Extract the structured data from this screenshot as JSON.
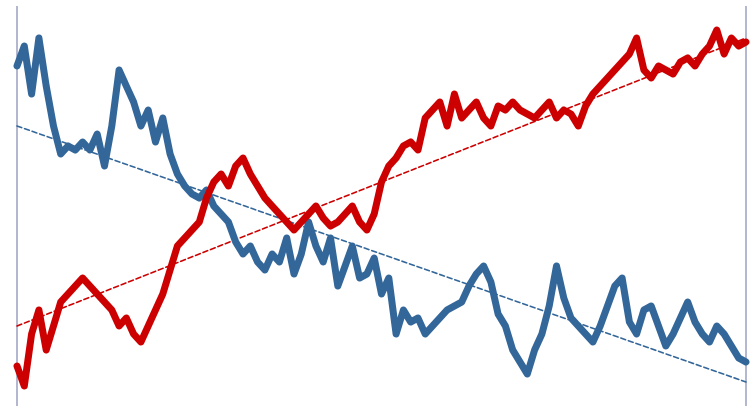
{
  "chart_data": {
    "type": "line",
    "title": "",
    "xlabel": "",
    "ylabel": "",
    "grid": false,
    "legend": "none",
    "x_range": [
      0,
      100
    ],
    "y_range": [
      0,
      100
    ],
    "series": [
      {
        "color": "#336699",
        "x": [
          0,
          1,
          2,
          3,
          4,
          5,
          6,
          7,
          8,
          9,
          10,
          11,
          12,
          13,
          14,
          15,
          16,
          17,
          18,
          19,
          20,
          21,
          22,
          23,
          24,
          25,
          26,
          27,
          28,
          29,
          30,
          31,
          32,
          33,
          34,
          35,
          36,
          37,
          38,
          39,
          40,
          41,
          42,
          43,
          44,
          45,
          46,
          47,
          48,
          49,
          50,
          51,
          52,
          53,
          54,
          55,
          56,
          57,
          58,
          59,
          60,
          61,
          62,
          63,
          64,
          65,
          66,
          67,
          68,
          69,
          70,
          71,
          72,
          73,
          74,
          75,
          76,
          77,
          78,
          79,
          80,
          81,
          82,
          83,
          84,
          85,
          86,
          87,
          88,
          89,
          90,
          91,
          92,
          93,
          94,
          95,
          96,
          97,
          98,
          99,
          100
        ],
        "y": [
          85,
          90,
          78,
          92,
          80,
          70,
          63,
          65,
          64,
          66,
          64,
          68,
          60,
          70,
          84,
          80,
          76,
          70,
          74,
          66,
          72,
          63,
          58,
          55,
          53,
          52,
          54,
          50,
          48,
          46,
          41,
          38,
          40,
          36,
          34,
          38,
          36,
          42,
          33,
          38,
          46,
          40,
          36,
          42,
          30,
          35,
          40,
          32,
          33,
          37,
          28,
          32,
          18,
          24,
          21,
          22,
          18,
          20,
          22,
          24,
          25,
          26,
          30,
          33,
          35,
          31,
          23,
          20,
          14,
          11,
          8,
          14,
          18,
          25,
          35,
          27,
          22,
          20,
          18,
          16,
          20,
          25,
          30,
          32,
          21,
          18,
          24,
          25,
          20,
          15,
          18,
          22,
          26,
          21,
          18,
          16,
          20,
          18,
          15,
          12,
          11
        ]
      },
      {
        "color": "#CC0000",
        "x": [
          0,
          1,
          2,
          3,
          4,
          5,
          6,
          7,
          8,
          9,
          10,
          11,
          12,
          13,
          14,
          15,
          16,
          17,
          18,
          19,
          20,
          21,
          22,
          23,
          24,
          25,
          26,
          27,
          28,
          29,
          30,
          31,
          32,
          33,
          34,
          35,
          36,
          37,
          38,
          39,
          40,
          41,
          42,
          43,
          44,
          45,
          46,
          47,
          48,
          49,
          50,
          51,
          52,
          53,
          54,
          55,
          56,
          57,
          58,
          59,
          60,
          61,
          62,
          63,
          64,
          65,
          66,
          67,
          68,
          69,
          70,
          71,
          72,
          73,
          74,
          75,
          76,
          77,
          78,
          79,
          80,
          81,
          82,
          83,
          84,
          85,
          86,
          87,
          88,
          89,
          90,
          91,
          92,
          93,
          94,
          95,
          96,
          97,
          98,
          99,
          100
        ],
        "y": [
          10,
          5,
          18,
          24,
          14,
          20,
          26,
          28,
          30,
          32,
          30,
          28,
          26,
          24,
          20,
          22,
          18,
          16,
          20,
          24,
          28,
          34,
          40,
          42,
          44,
          46,
          52,
          56,
          58,
          55,
          60,
          62,
          58,
          55,
          52,
          50,
          48,
          46,
          44,
          46,
          48,
          50,
          47,
          45,
          46,
          48,
          50,
          46,
          44,
          48,
          56,
          60,
          62,
          65,
          66,
          64,
          72,
          74,
          76,
          70,
          78,
          72,
          74,
          76,
          72,
          70,
          75,
          74,
          76,
          74,
          73,
          72,
          74,
          76,
          72,
          74,
          73,
          70,
          75,
          78,
          80,
          82,
          84,
          86,
          88,
          92,
          84,
          82,
          85,
          84,
          83,
          86,
          87,
          85,
          88,
          90,
          94,
          88,
          92,
          90,
          91
        ]
      },
      {
        "color": "#336699",
        "style": "dashed",
        "x": [
          0,
          100
        ],
        "y": [
          70,
          6
        ]
      },
      {
        "color": "#CC0000",
        "style": "dashed",
        "x": [
          0,
          100
        ],
        "y": [
          20,
          92
        ]
      }
    ]
  }
}
